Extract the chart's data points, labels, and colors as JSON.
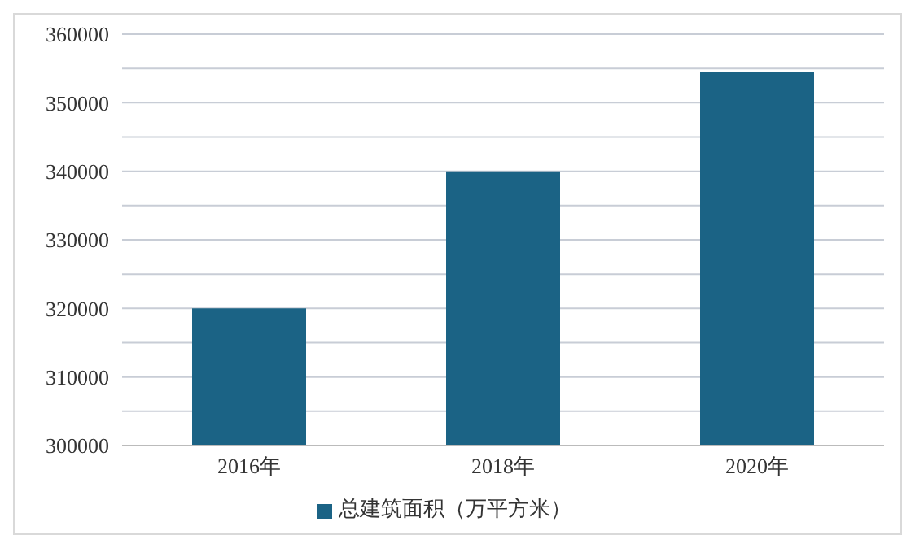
{
  "chart_data": {
    "type": "bar",
    "categories": [
      "2016年",
      "2018年",
      "2020年"
    ],
    "series": [
      {
        "name": "总建筑面积（万平方米）",
        "color": "#1b6385",
        "values": [
          320000,
          340000,
          354500
        ]
      }
    ],
    "ylim": [
      300000,
      360000
    ],
    "yticks": [
      300000,
      {
        "value": 305000,
        "label": null
      },
      310000,
      {
        "value": 315000,
        "label": null
      },
      320000,
      {
        "value": 325000,
        "label": null
      },
      330000,
      {
        "value": 335000,
        "label": null
      },
      340000,
      {
        "value": 345000,
        "label": null
      },
      350000,
      {
        "value": 355000,
        "label": null
      },
      360000
    ],
    "grid": "y",
    "legend": "bottom"
  }
}
